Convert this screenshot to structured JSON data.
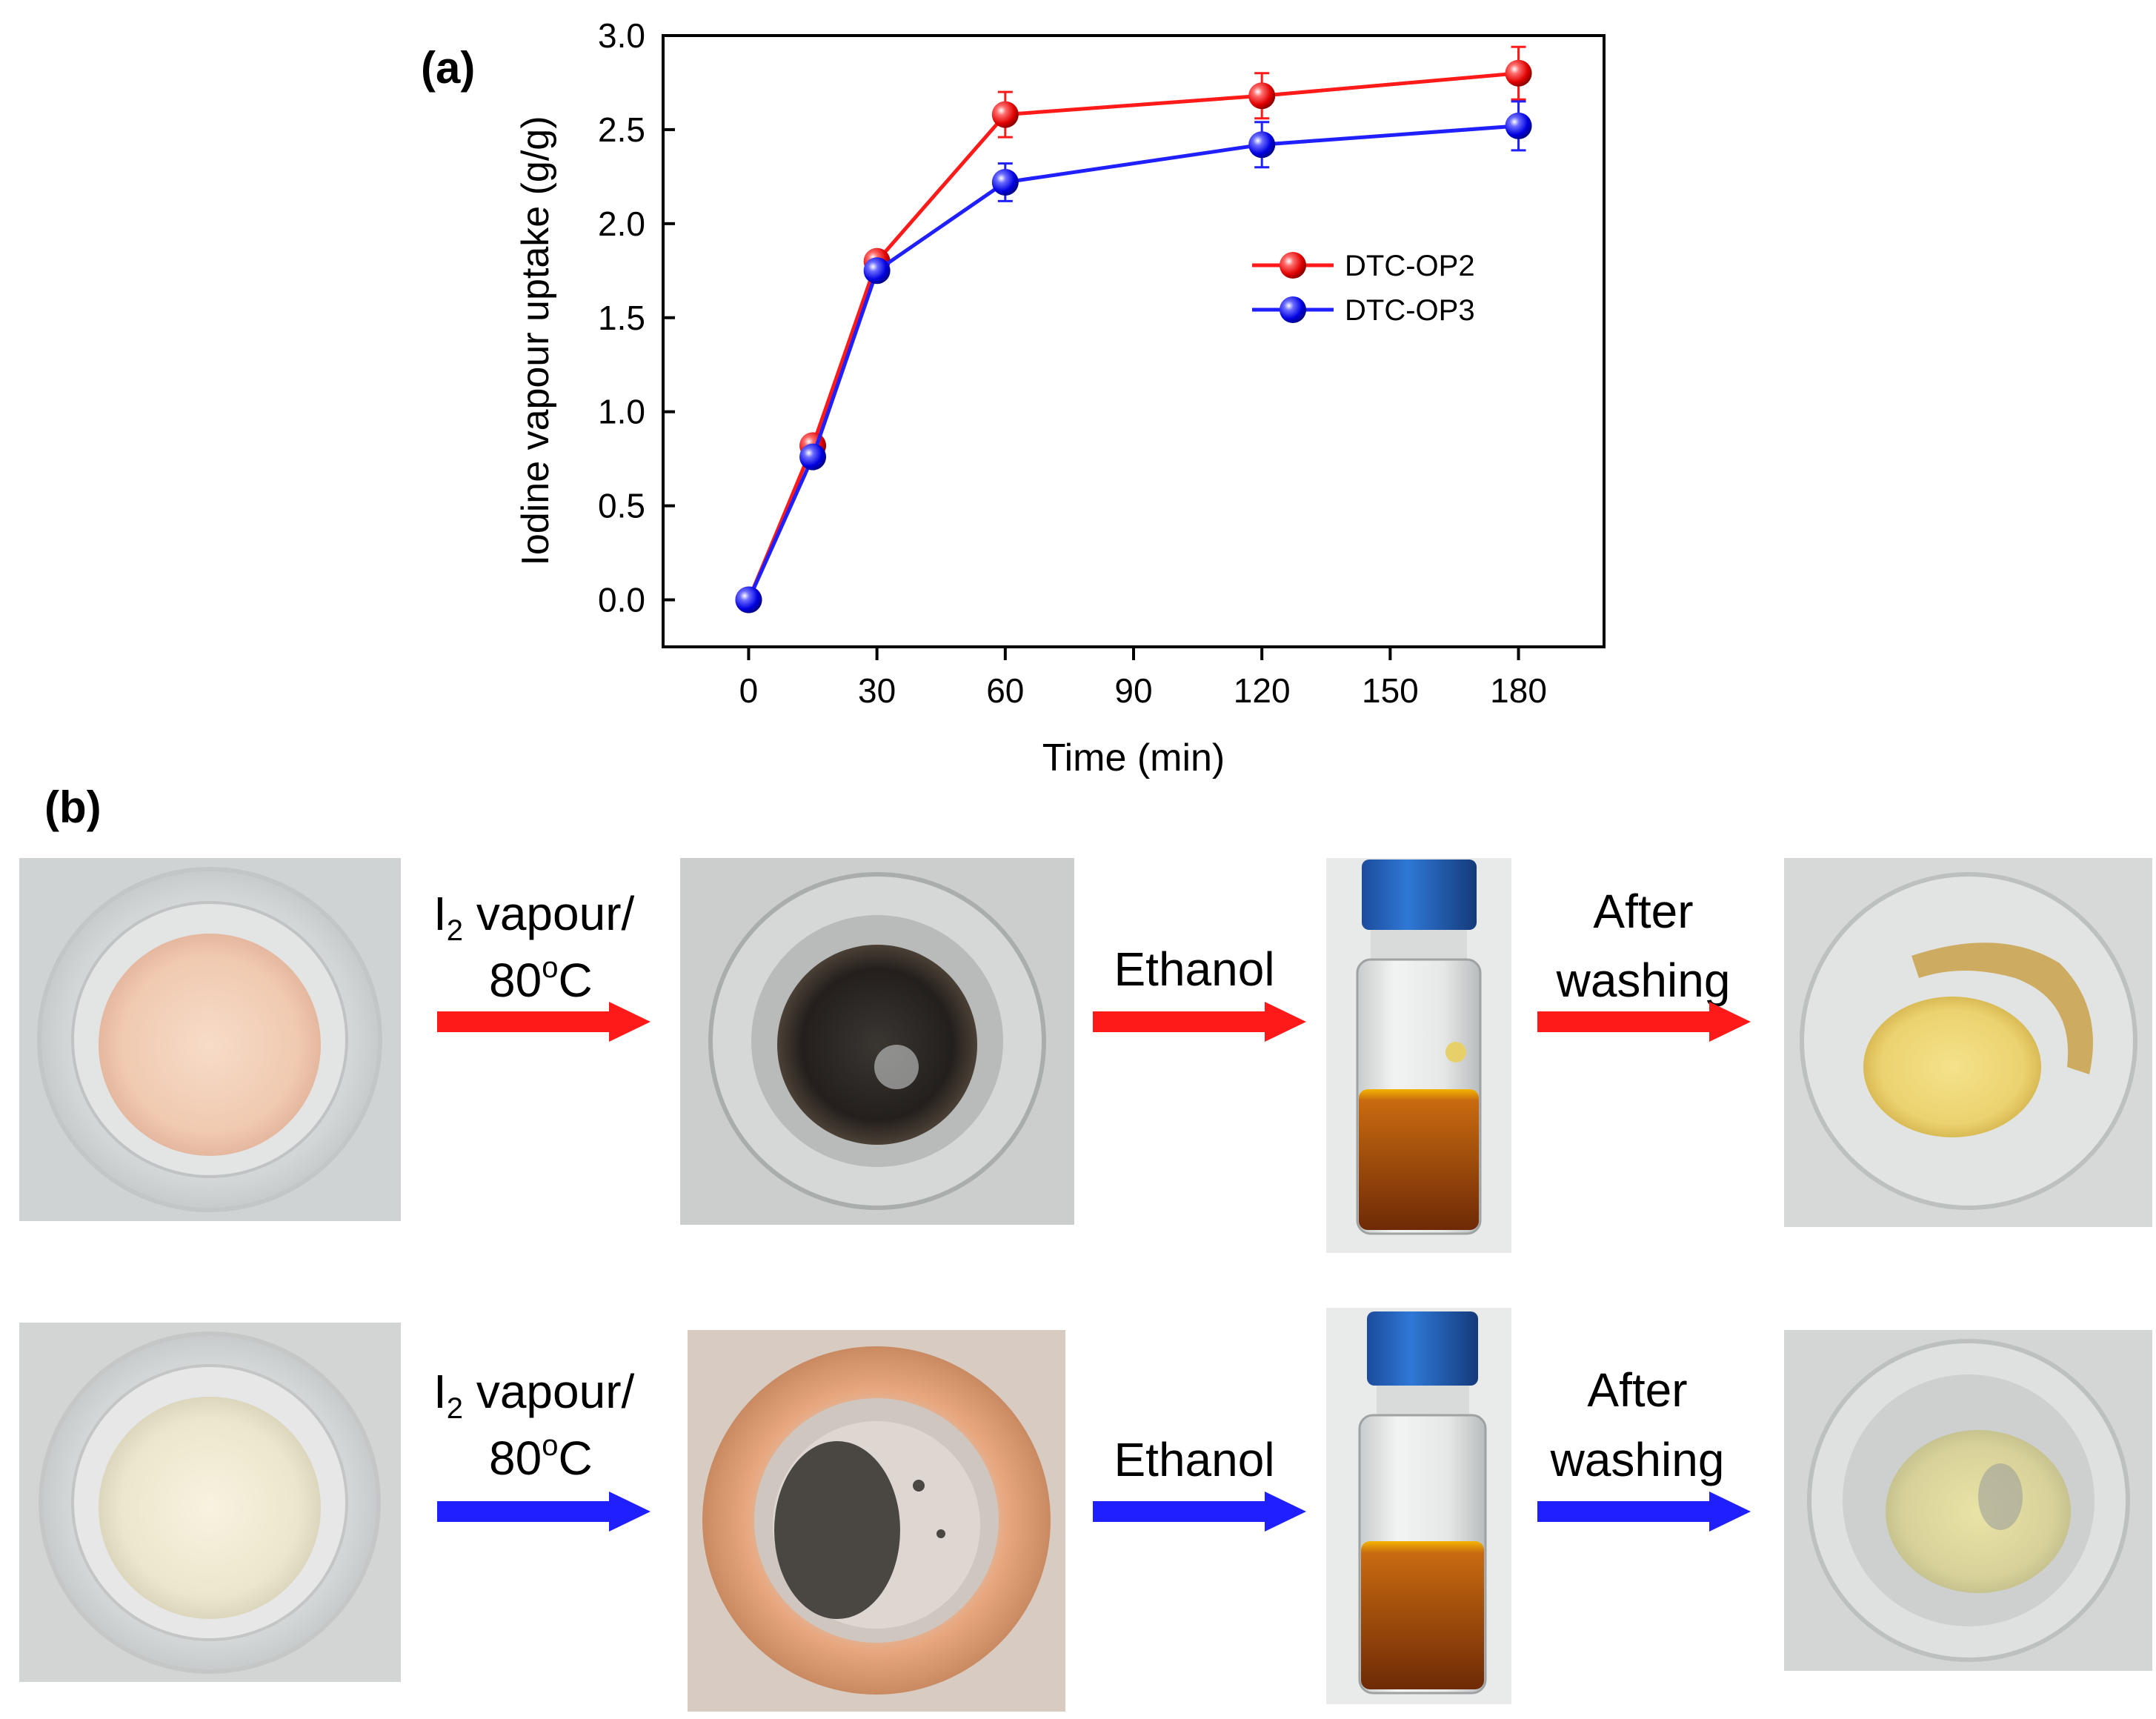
{
  "figure": {
    "panel_a_label": "(a)",
    "panel_b_label": "(b)"
  },
  "chart_data": {
    "type": "line",
    "title": "",
    "xlabel": "Time (min)",
    "ylabel": "Iodine vapour uptake (g/g)",
    "x": [
      0,
      15,
      30,
      60,
      120,
      180
    ],
    "xlim": [
      -20,
      200
    ],
    "ylim": [
      -0.25,
      3.0
    ],
    "xticks": [
      0,
      30,
      60,
      90,
      120,
      150,
      180
    ],
    "xtick_labels": [
      "0",
      "30",
      "60",
      "90",
      "120",
      "150",
      "180"
    ],
    "yticks": [
      0.0,
      0.5,
      1.0,
      1.5,
      2.0,
      2.5,
      3.0
    ],
    "ytick_labels": [
      "0.0",
      "0.5",
      "1.0",
      "1.5",
      "2.0",
      "2.5",
      "3.0"
    ],
    "grid": false,
    "legend_position": "center-right",
    "series": [
      {
        "name": "DTC-OP2",
        "color": "#ff1a1a",
        "values": [
          0.0,
          0.82,
          1.8,
          2.58,
          2.68,
          2.8
        ],
        "errors": [
          0,
          0.04,
          0.05,
          0.12,
          0.12,
          0.14
        ]
      },
      {
        "name": "DTC-OP3",
        "color": "#1f1fff",
        "values": [
          0.0,
          0.76,
          1.75,
          2.22,
          2.42,
          2.52
        ],
        "errors": [
          0,
          0.04,
          0.05,
          0.1,
          0.12,
          0.13
        ]
      }
    ]
  },
  "process": {
    "rows": [
      {
        "arrow_color": "#ff1a1a",
        "step1_line1_main": "I",
        "step1_line1_sub": "2",
        "step1_line1_rest": " vapour/",
        "step1_line2_main": "80",
        "step1_line2_sup": "o",
        "step1_line2_rest": "C",
        "step2": "Ethanol",
        "step3_line1": "After",
        "step3_line2": "washing"
      },
      {
        "arrow_color": "#1f1fff",
        "step1_line1_main": "I",
        "step1_line1_sub": "2",
        "step1_line1_rest": " vapour/",
        "step1_line2_main": "80",
        "step1_line2_sup": "o",
        "step1_line2_rest": "C",
        "step2": "Ethanol",
        "step3_line1": "After",
        "step3_line2": "washing"
      }
    ]
  }
}
